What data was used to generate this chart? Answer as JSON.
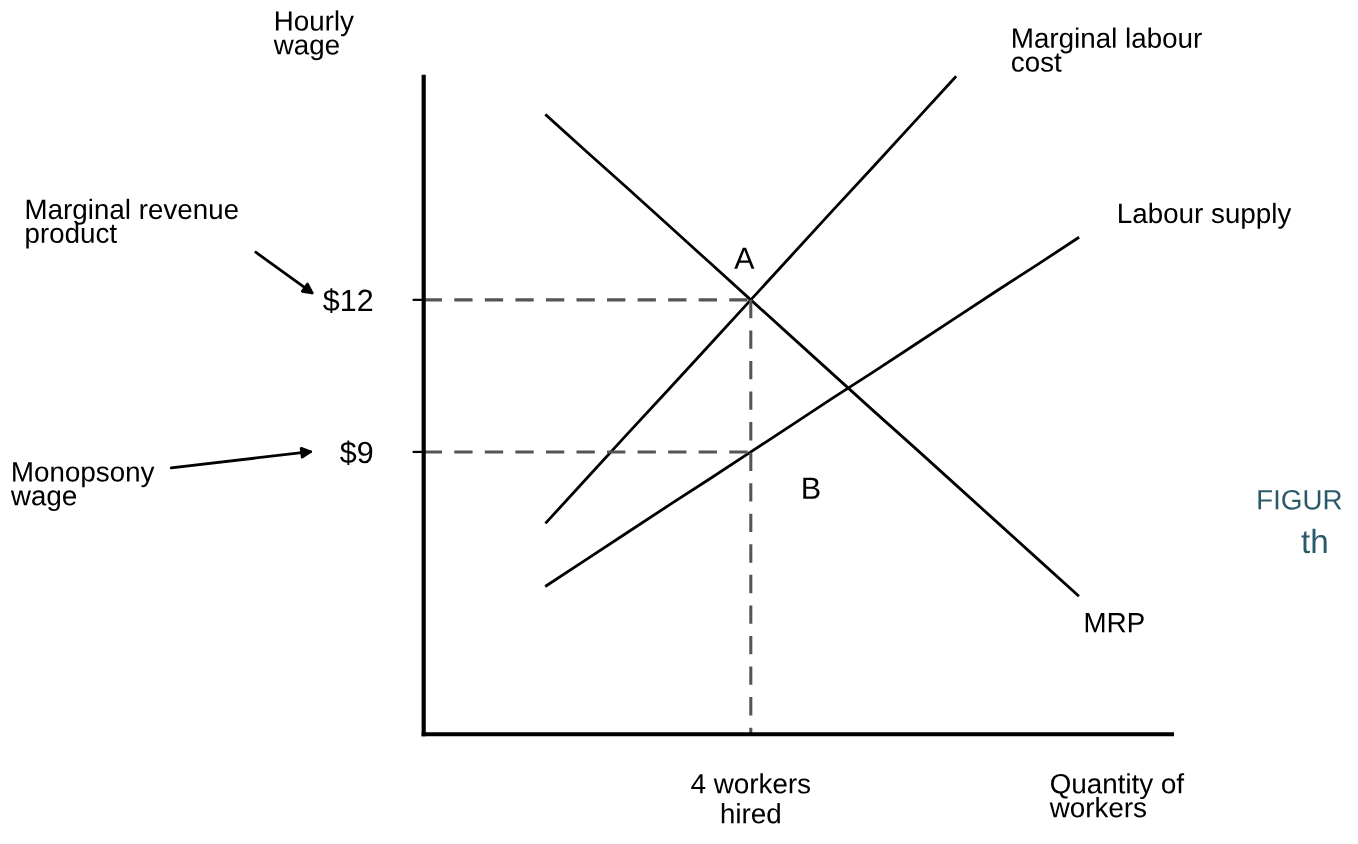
{
  "chart_data": {
    "type": "line",
    "xlabel": "Quantity of\nworkers",
    "ylabel": "Hourly\nwage",
    "categories": [
      null,
      null,
      null,
      null,
      null,
      null,
      null,
      null,
      "4 workers\nhired",
      null,
      null,
      null,
      null,
      null,
      null,
      null,
      null,
      null,
      null
    ],
    "ylim": [
      3.43,
      16.4
    ],
    "yticks": [
      {
        "value": 9,
        "label": "$9"
      },
      {
        "value": 12,
        "label": "$12"
      }
    ],
    "grid": false,
    "legend": false,
    "marker": "none",
    "series": [
      {
        "name": "Marginal labour\ncost",
        "color": "#000000",
        "values": [
          null,
          null,
          null,
          7.61,
          8.49,
          9.37,
          10.24,
          11.12,
          12,
          12.88,
          13.76,
          14.63,
          15.51,
          16.39,
          null,
          null,
          null,
          null,
          null
        ]
      },
      {
        "name": "Labour supply",
        "color": "#000000",
        "values": [
          null,
          null,
          null,
          6.36,
          6.89,
          7.42,
          7.95,
          8.47,
          9,
          9.53,
          10.06,
          10.58,
          11.11,
          11.64,
          12.17,
          12.69,
          13.22,
          null,
          null
        ]
      },
      {
        "name": "MRP",
        "color": "#000000",
        "values": [
          null,
          null,
          null,
          15.64,
          14.91,
          14.19,
          13.46,
          12.73,
          12,
          11.27,
          10.54,
          9.81,
          9.09,
          8.36,
          7.63,
          6.9,
          6.17,
          null,
          null
        ]
      },
      {
        "color": "#555555",
        "line_style": "dashed",
        "values": [
          12,
          12,
          12,
          12,
          12,
          12,
          12,
          12,
          12,
          null,
          null,
          null,
          null,
          null,
          null,
          null,
          null,
          null,
          null
        ]
      },
      {
        "color": "#555555",
        "line_style": "dashed",
        "values": [
          9,
          9,
          9,
          9,
          9,
          9,
          9,
          9,
          9,
          null,
          null,
          null,
          null,
          null,
          null,
          null,
          null,
          null,
          null
        ]
      },
      {
        "color": "#555555",
        "line_style": "dashed",
        "x": [
          "4 workers\nhired",
          "4 workers\nhired"
        ],
        "values": [
          12,
          3.43
        ]
      }
    ],
    "annotations": [
      {
        "text": "A",
        "x": "4 workers\nhired",
        "y": 12
      },
      {
        "text": "B",
        "x": "4 workers\nhired",
        "y": 9
      },
      "Marginal revenue\nproduct",
      "Monopsony\nwage",
      "FIGUR",
      "th"
    ]
  }
}
